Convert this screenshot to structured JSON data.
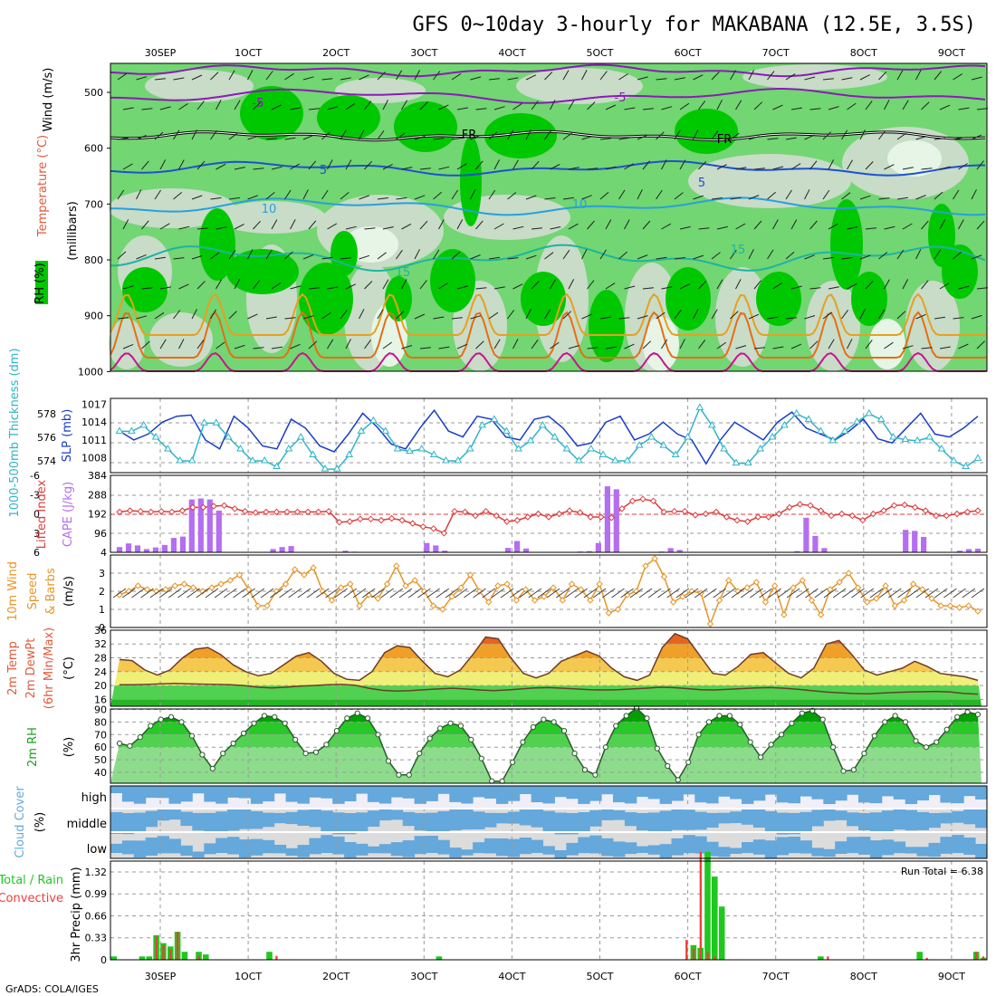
{
  "chart_data": {
    "type": "meteogram",
    "title": "GFS 0~10day 3-hourly for MAKABANA (12.5E, 3.5S)",
    "credit": "GrADS: COLA/IGES",
    "run_total_label": "Run Total = 6.38",
    "date_labels": [
      "30SEP",
      "1OCT",
      "2OCT",
      "3OCT",
      "4OCT",
      "5OCT",
      "6OCT",
      "7OCT",
      "8OCT",
      "9OCT"
    ],
    "colors": {
      "rh_dark": "#00c800",
      "rh_mid": "#72d672",
      "rh_light": "#c8dcc8",
      "rh_pale": "#e6f5e6",
      "slp": "#1a3cc8",
      "thickness": "#30b4c8",
      "lifted": "#dc3c3c",
      "cape": "#b46ef0",
      "wind": "#e69628",
      "cloud": "#64a8dc",
      "cloud_bg": "#dcdcdc",
      "precip_total": "#1ec81e",
      "precip_conv": "#f03c3c"
    },
    "upper_air": {
      "ylabel_left": [
        "Wind (m/s)",
        "Temperature (°C)",
        "RH (%)"
      ],
      "ylabel_right": "(millibars)",
      "pressure_levels": [
        500,
        600,
        700,
        800,
        900,
        1000
      ],
      "contour_labels": [
        "-5",
        "-5",
        "FR",
        "FR",
        "5",
        "5",
        "10",
        "10",
        "15",
        "15"
      ]
    },
    "slp_thickness": {
      "ylabel_left": "1000-500mb Thickness (dm)",
      "ylabel_right": "SLP (mb)",
      "left_ticks": [
        574,
        576,
        578
      ],
      "right_ticks": [
        1008,
        1011,
        1014,
        1017
      ],
      "slp": [
        1012.5,
        1011,
        1012,
        1014,
        1015,
        1015.2,
        1011,
        1009.5,
        1015,
        1013,
        1010,
        1009.5,
        1014.5,
        1013,
        1010,
        1009,
        1012,
        1015.5,
        1013.2,
        1010.3,
        1009.5,
        1013,
        1016,
        1012.5,
        1011.5,
        1015,
        1014.5,
        1011.5,
        1011,
        1014.5,
        1015,
        1013,
        1010,
        1010.5,
        1014,
        1015,
        1011,
        1012,
        1014,
        1012,
        1011,
        1007,
        1011,
        1014,
        1012.5,
        1011,
        1014,
        1015.7,
        1013,
        1012,
        1011,
        1012.5,
        1014.5,
        1011.2,
        1010.5,
        1013,
        1015.5,
        1012,
        1011.5,
        1013,
        1015
      ],
      "thickness": [
        576.5,
        576.5,
        577,
        576,
        575,
        574,
        574,
        577.2,
        577.2,
        576,
        575,
        574,
        574,
        573.5,
        575,
        576,
        574.5,
        573.3,
        573.3,
        574.5,
        576.5,
        577.4,
        576.5,
        575,
        574.8,
        575,
        574.5,
        574,
        574,
        575,
        577,
        577.5,
        576.5,
        575,
        575.7,
        577,
        576,
        575,
        574,
        575,
        574.5,
        574,
        574,
        575.3,
        576,
        575.3,
        574.5,
        576,
        578.5,
        577,
        575,
        573.8,
        573.8,
        575,
        576,
        577,
        578,
        577.5,
        576.5,
        575.7,
        576.5,
        577.3,
        578,
        577.5,
        576,
        575.8,
        575.7,
        576,
        575,
        574,
        573.5,
        574.2
      ]
    },
    "cape_li": {
      "ylabel_left": "Lifted Index",
      "ylabel_right": "CAPE (J/kg)",
      "left_ticks": [
        "-6",
        "-3",
        "0",
        "3",
        "6"
      ],
      "right_ticks": [
        "4",
        "96",
        "192",
        "288",
        "384"
      ],
      "lifted_index": [
        -0.3,
        -0.5,
        -0.4,
        -0.3,
        -0.4,
        -0.3,
        -0.5,
        -1,
        -1,
        -1.2,
        -1.3,
        -0.8,
        -0.4,
        -0.2,
        -0.3,
        -0.3,
        -0.3,
        -0.3,
        -0.3,
        -0.3,
        -0.4,
        1.3,
        1.2,
        0.8,
        0.8,
        1,
        0.7,
        1,
        1.5,
        2,
        2.3,
        3,
        -0.4,
        -0.3,
        0.3,
        -0.4,
        0.3,
        1.2,
        1,
        0.5,
        0,
        0.5,
        0,
        -0.5,
        -0.2,
        0.5,
        0.5,
        0.6,
        -0.8,
        -2,
        -2.3,
        -2,
        -0.3,
        -0.4,
        -0.4,
        0.2,
        0,
        -0.3,
        0.5,
        1,
        1.2,
        0.5,
        0.5,
        0,
        -1,
        -1.5,
        -1.3,
        -0.5,
        0.3,
        0,
        0.3,
        1,
        0,
        -0.5,
        -1.3,
        -1.4,
        -1,
        -0.5,
        0.3,
        0.3,
        0,
        -0.3,
        -0.5
      ],
      "cape": [
        30,
        48,
        38,
        20,
        28,
        40,
        75,
        82,
        265,
        270,
        265,
        210,
        6,
        6,
        4,
        4,
        4,
        20,
        30,
        35,
        4,
        4,
        4,
        5,
        4,
        12,
        7,
        5,
        4,
        4,
        4,
        4,
        4,
        4,
        50,
        38,
        12,
        5,
        4,
        4,
        5,
        4,
        6,
        26,
        60,
        23,
        5,
        4,
        4,
        4,
        4,
        8,
        10,
        50,
        330,
        315,
        4,
        4,
        4,
        4,
        8,
        25,
        16,
        4,
        4,
        4,
        4,
        4,
        4,
        4,
        5,
        4,
        4,
        4,
        4,
        10,
        175,
        85,
        25,
        4,
        4,
        4,
        4,
        4,
        4,
        4,
        4,
        115,
        110,
        80,
        4,
        4,
        4,
        12,
        20,
        22
      ]
    },
    "wind10m": {
      "ylabel": [
        "10m Wind",
        "Speed",
        "& Barbs",
        "(m/s)"
      ],
      "ticks": [
        "0",
        "1",
        "2",
        "3"
      ],
      "speed": [
        1.8,
        2,
        2.3,
        2.1,
        2,
        2.1,
        2.3,
        2.4,
        2.2,
        2,
        2.2,
        2.4,
        2.6,
        2.9,
        2.1,
        1.2,
        1.2,
        2,
        2.4,
        3.2,
        2.9,
        3.3,
        2,
        1.5,
        2.2,
        2.4,
        1.2,
        1.8,
        1.6,
        2.4,
        3.4,
        2.3,
        2.6,
        2,
        1.2,
        1,
        1.7,
        2.2,
        2.9,
        2,
        1.4,
        2.3,
        2.4,
        1.5,
        2.1,
        1.5,
        1.7,
        2.2,
        1.5,
        2.4,
        2.1,
        1.5,
        2.4,
        0.8,
        1,
        1.8,
        2,
        3.4,
        3.8,
        2.8,
        1.4,
        1.7,
        2,
        1.9,
        0.2,
        1.5,
        2.6,
        2,
        2.2,
        2.5,
        1.4,
        2.3,
        0.7,
        2.2,
        2.6,
        1.5,
        0.7,
        2.1,
        2.5,
        3,
        2.2,
        1.4,
        1.6,
        2.3,
        1.2,
        1.5,
        2.4,
        2.1,
        1.6,
        1.2,
        1.2,
        1.1,
        1.2,
        0.9
      ]
    },
    "temp2m": {
      "ylabel": [
        "2m Temp",
        "2m DewPt",
        "(6hr Min/Max)",
        "(°C)"
      ],
      "ticks": [
        "16",
        "20",
        "24",
        "28",
        "32",
        "36"
      ],
      "temp": [
        27.5,
        27.2,
        24.5,
        23,
        24.5,
        28,
        30.5,
        31,
        29,
        26,
        24,
        22.8,
        23.5,
        26,
        28.5,
        29.5,
        27,
        23.5,
        21.8,
        21.5,
        24,
        29.5,
        31.5,
        31,
        27,
        23.5,
        22.5,
        24.5,
        29,
        34,
        33.5,
        28,
        23.5,
        22.2,
        23.5,
        27,
        28.5,
        30,
        28.5,
        25,
        22.5,
        21.5,
        23,
        31,
        35,
        33.5,
        28.5,
        23.5,
        23,
        25.5,
        29,
        29.5,
        26.5,
        23.5,
        22.2,
        25,
        32,
        33,
        29,
        24.5,
        23,
        24,
        25,
        27,
        25.5,
        23.5,
        23,
        22.5,
        21.5
      ],
      "dewpoint": [
        20.2,
        20.2,
        20.3,
        20.5,
        20.6,
        20.5,
        20.4,
        20.3,
        20.2,
        20,
        19.5,
        19.3,
        19.5,
        19.8,
        20,
        20.2,
        20.3,
        20.1,
        19.2,
        18.6,
        18.4,
        18.5,
        18.8,
        19,
        19.2,
        19,
        18.7,
        18.5,
        18.7,
        19,
        19.3,
        19.4,
        19.2,
        19,
        18.8,
        18.7,
        18.8,
        19,
        19.2,
        19.5,
        19.4,
        19.1,
        18.8,
        18.7,
        18.9,
        19.1,
        19.3,
        19.4,
        19.2,
        18.9,
        18.5,
        18.1,
        17.9,
        17.7,
        17.6,
        17.8,
        18,
        18.1,
        18.2,
        18.3,
        18.1,
        17.7,
        17.5
      ]
    },
    "rh2m": {
      "ylabel": [
        "2m RH",
        "(%)"
      ],
      "ticks": [
        "40",
        "50",
        "60",
        "70",
        "80",
        "90"
      ],
      "rh": [
        63,
        61,
        68,
        77,
        82,
        84,
        80,
        69,
        54,
        43,
        55,
        63,
        71,
        79,
        85,
        84,
        79,
        66,
        55,
        56,
        62,
        73,
        83,
        87,
        83,
        70,
        49,
        38,
        38,
        55,
        67,
        75,
        79,
        77,
        66,
        51,
        33,
        33,
        48,
        64,
        76,
        82,
        80,
        73,
        55,
        42,
        38,
        60,
        77,
        85,
        91,
        83,
        59,
        45,
        34,
        48,
        70,
        80,
        85,
        85,
        78,
        64,
        52,
        62,
        70,
        79,
        87,
        89,
        82,
        60,
        41,
        42,
        55,
        69,
        80,
        85,
        80,
        65,
        60,
        64,
        74,
        84,
        88,
        86
      ]
    },
    "cloud": {
      "ylabel": [
        "Cloud Cover",
        "(%)"
      ],
      "row_labels": [
        "high",
        "middle",
        "low"
      ]
    },
    "precip": {
      "ylabel": [
        "3hr Precip (mm)",
        "Total / Rain",
        "Convective"
      ],
      "ticks": [
        "0",
        "0.33",
        "0.66",
        "0.99",
        "1.32"
      ],
      "total": [
        0.05,
        0,
        0,
        0,
        0.05,
        0.05,
        0.37,
        0.25,
        0.2,
        0.42,
        0.12,
        0,
        0.12,
        0.08,
        0,
        0,
        0,
        0,
        0,
        0,
        0,
        0,
        0.12,
        0,
        0,
        0,
        0,
        0,
        0,
        0,
        0,
        0,
        0,
        0,
        0,
        0,
        0,
        0,
        0,
        0,
        0,
        0,
        0,
        0,
        0,
        0,
        0.05,
        0,
        0,
        0,
        0,
        0,
        0,
        0,
        0,
        0,
        0,
        0,
        0,
        0,
        0,
        0,
        0,
        0,
        0,
        0,
        0,
        0,
        0,
        0,
        0,
        0,
        0,
        0,
        0,
        0,
        0,
        0,
        0,
        0,
        0,
        0,
        0.22,
        0.18,
        1.62,
        1.25,
        0.8,
        0,
        0,
        0,
        0,
        0,
        0,
        0,
        0,
        0,
        0,
        0,
        0,
        0,
        0.05,
        0,
        0,
        0,
        0,
        0,
        0,
        0,
        0,
        0,
        0,
        0,
        0,
        0,
        0.12,
        0,
        0,
        0,
        0,
        0,
        0,
        0,
        0.12,
        0.03
      ],
      "convective": [
        0,
        0,
        0,
        0,
        0,
        0,
        0.35,
        0.22,
        0.15,
        0.42,
        0,
        0,
        0.06,
        0,
        0,
        0,
        0,
        0,
        0,
        0,
        0,
        0,
        0,
        0.06,
        0,
        0,
        0,
        0,
        0,
        0,
        0,
        0,
        0,
        0,
        0,
        0,
        0,
        0,
        0,
        0,
        0,
        0,
        0,
        0,
        0,
        0,
        0,
        0,
        0,
        0,
        0,
        0,
        0,
        0,
        0,
        0,
        0,
        0,
        0,
        0,
        0,
        0,
        0,
        0,
        0,
        0,
        0,
        0,
        0,
        0,
        0,
        0,
        0,
        0,
        0,
        0,
        0,
        0,
        0,
        0,
        0,
        0.3,
        0.17,
        1.62,
        0.11,
        0.05,
        0,
        0,
        0,
        0,
        0,
        0,
        0,
        0,
        0,
        0,
        0,
        0,
        0,
        0,
        0,
        0.05,
        0,
        0,
        0,
        0,
        0,
        0,
        0,
        0,
        0,
        0,
        0,
        0,
        0,
        0.03,
        0,
        0,
        0,
        0,
        0,
        0,
        0.12,
        0.05
      ]
    }
  }
}
